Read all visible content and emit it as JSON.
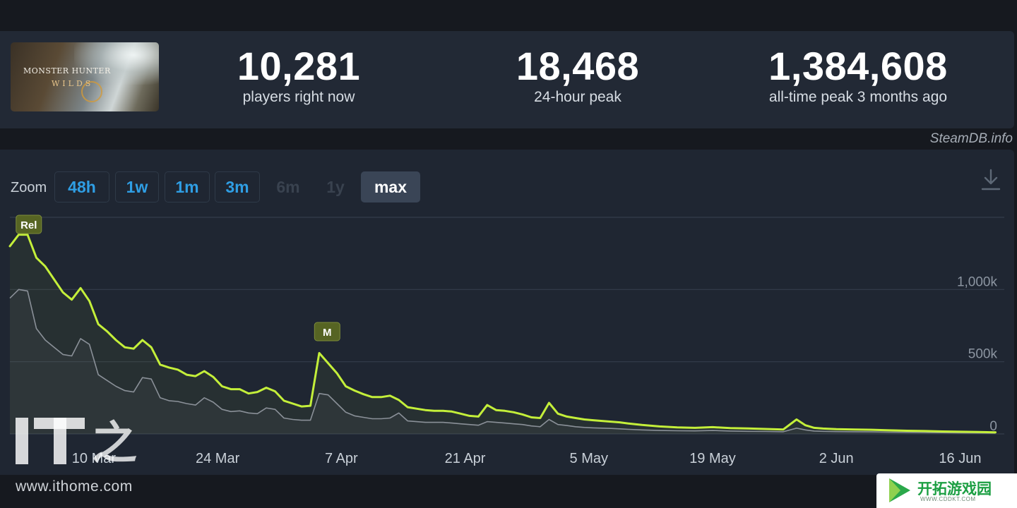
{
  "game": {
    "cover_line1": "MONSTER HUNTER",
    "cover_line2": "WILDS"
  },
  "stats": {
    "current": {
      "value": "10,281",
      "label": "players right now"
    },
    "peak24": {
      "value": "18,468",
      "label": "24-hour peak"
    },
    "alltime": {
      "value": "1,384,608",
      "label": "all-time peak 3 months ago"
    }
  },
  "source": "SteamDB.info",
  "zoom": {
    "label": "Zoom",
    "buttons": [
      {
        "label": "48h",
        "state": "enabled"
      },
      {
        "label": "1w",
        "state": "enabled"
      },
      {
        "label": "1m",
        "state": "enabled"
      },
      {
        "label": "3m",
        "state": "enabled"
      },
      {
        "label": "6m",
        "state": "disabled"
      },
      {
        "label": "1y",
        "state": "disabled"
      },
      {
        "label": "max",
        "state": "active"
      }
    ]
  },
  "chart_data": {
    "type": "line",
    "y_ticks": [
      {
        "value": 0,
        "label": "0"
      },
      {
        "value": 500000,
        "label": "500k"
      },
      {
        "value": 1000000,
        "label": "1,000k"
      }
    ],
    "x_ticks": [
      {
        "day": 10,
        "label": "10 Mar"
      },
      {
        "day": 24,
        "label": "24 Mar"
      },
      {
        "day": 38,
        "label": "7 Apr"
      },
      {
        "day": 52,
        "label": "21 Apr"
      },
      {
        "day": 66,
        "label": "5 May"
      },
      {
        "day": 80,
        "label": "19 May"
      },
      {
        "day": 94,
        "label": "2 Jun"
      },
      {
        "day": 108,
        "label": "16 Jun"
      }
    ],
    "ylim": [
      0,
      1500000
    ],
    "xlim": [
      0.5,
      113
    ],
    "colors": {
      "peak": "#c4ef3a",
      "average": "#8a9098",
      "grid": "#343d4b"
    },
    "annotations": [
      {
        "day": 2,
        "label": "Rel"
      },
      {
        "day": 36,
        "label": "M"
      }
    ],
    "series": [
      {
        "role": "peak",
        "x": [
          0.5,
          1.5,
          2.5,
          3.5,
          4.5,
          5.5,
          6.5,
          7.5,
          8.5,
          9.5,
          10.5,
          11.5,
          12.5,
          13.5,
          14.5,
          15.5,
          16.5,
          17.5,
          18.5,
          19.5,
          20.5,
          21.5,
          22.5,
          23.5,
          24.5,
          25.5,
          26.5,
          27.5,
          28.5,
          29.5,
          30.5,
          31.5,
          32.5,
          33.5,
          34.5,
          35.5,
          36.5,
          37.5,
          38.5,
          39.5,
          40.5,
          41.5,
          42.5,
          43.5,
          44.5,
          45.5,
          46.5,
          47.5,
          48.5,
          49.5,
          50.5,
          51.5,
          52.5,
          53.5,
          54.5,
          55.5,
          56.5,
          57.5,
          58.5,
          59.5,
          60.5,
          61.5,
          62.5,
          63.5,
          64.5,
          65.5,
          66.5,
          67.5,
          68.5,
          69.5,
          70.5,
          72,
          74,
          76,
          78,
          80,
          82,
          84,
          86,
          88,
          89.5,
          90.5,
          91.5,
          92.5,
          94,
          96,
          98,
          100,
          102,
          104,
          106,
          108,
          110,
          112
        ],
        "y": [
          1300000,
          1380000,
          1380000,
          1220000,
          1160000,
          1070000,
          980000,
          930000,
          1010000,
          920000,
          760000,
          710000,
          650000,
          600000,
          590000,
          650000,
          600000,
          480000,
          460000,
          445000,
          410000,
          400000,
          435000,
          395000,
          330000,
          310000,
          310000,
          280000,
          290000,
          320000,
          295000,
          230000,
          210000,
          190000,
          195000,
          560000,
          490000,
          420000,
          330000,
          300000,
          275000,
          255000,
          255000,
          265000,
          235000,
          185000,
          175000,
          165000,
          160000,
          160000,
          155000,
          140000,
          125000,
          120000,
          200000,
          165000,
          160000,
          150000,
          135000,
          115000,
          110000,
          215000,
          140000,
          120000,
          110000,
          100000,
          95000,
          90000,
          85000,
          80000,
          72000,
          62000,
          52000,
          45000,
          42000,
          47000,
          40000,
          38000,
          34000,
          31000,
          100000,
          60000,
          42000,
          37000,
          33000,
          31000,
          29000,
          25000,
          22000,
          20000,
          17000,
          15000,
          13000,
          11000
        ]
      },
      {
        "role": "average",
        "x": [
          0.5,
          1.5,
          2.5,
          3.5,
          4.5,
          5.5,
          6.5,
          7.5,
          8.5,
          9.5,
          10.5,
          11.5,
          12.5,
          13.5,
          14.5,
          15.5,
          16.5,
          17.5,
          18.5,
          19.5,
          20.5,
          21.5,
          22.5,
          23.5,
          24.5,
          25.5,
          26.5,
          27.5,
          28.5,
          29.5,
          30.5,
          31.5,
          32.5,
          33.5,
          34.5,
          35.5,
          36.5,
          37.5,
          38.5,
          39.5,
          40.5,
          41.5,
          42.5,
          43.5,
          44.5,
          45.5,
          46.5,
          47.5,
          48.5,
          49.5,
          50.5,
          51.5,
          52.5,
          53.5,
          54.5,
          55.5,
          56.5,
          57.5,
          58.5,
          59.5,
          60.5,
          61.5,
          62.5,
          63.5,
          64.5,
          65.5,
          66.5,
          67.5,
          68.5,
          69.5,
          70.5,
          72,
          74,
          76,
          78,
          80,
          82,
          84,
          86,
          88,
          89.5,
          90.5,
          91.5,
          92.5,
          94,
          96,
          98,
          100,
          102,
          104,
          106,
          108,
          110,
          112
        ],
        "y": [
          940000,
          1000000,
          990000,
          730000,
          650000,
          600000,
          550000,
          540000,
          660000,
          620000,
          410000,
          370000,
          330000,
          300000,
          290000,
          390000,
          380000,
          250000,
          230000,
          225000,
          210000,
          200000,
          250000,
          220000,
          170000,
          155000,
          160000,
          145000,
          140000,
          180000,
          170000,
          110000,
          100000,
          95000,
          95000,
          280000,
          270000,
          210000,
          150000,
          125000,
          115000,
          105000,
          105000,
          110000,
          145000,
          90000,
          85000,
          80000,
          80000,
          80000,
          75000,
          70000,
          65000,
          60000,
          85000,
          80000,
          75000,
          70000,
          65000,
          55000,
          50000,
          100000,
          65000,
          58000,
          50000,
          45000,
          42000,
          40000,
          38000,
          35000,
          32000,
          28000,
          24000,
          22000,
          21000,
          24000,
          20000,
          18000,
          17000,
          15000,
          40000,
          28000,
          20000,
          18000,
          16000,
          15000,
          14000,
          12000,
          11000,
          10000,
          9000,
          8000,
          7000,
          6000
        ]
      }
    ]
  },
  "watermarks": {
    "it_text": "IT之家",
    "it_url": "www.ithome.com",
    "badge_title": "开拓游戏园",
    "badge_url": "WWW.CDDKT.COM"
  }
}
